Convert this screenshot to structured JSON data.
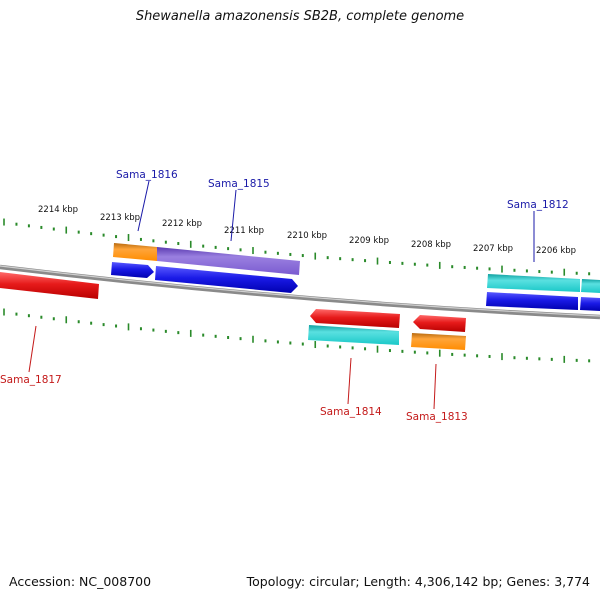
{
  "title": "Shewanella amazonensis SB2B, complete genome",
  "footer": {
    "accession": "Accession: NC_008700",
    "summary": "Topology: circular; Length: 4,306,142 bp; Genes: 3,774"
  },
  "colors": {
    "backbone": "#8a8a8a",
    "tick": "#2a8a2a",
    "forward_label": "#1a1aa8",
    "reverse_label": "#c41a1a",
    "blue": "#1a1ae6",
    "red": "#e61a1a",
    "orange": "#ff9a1a",
    "purple": "#8a6ad6",
    "cyan": "#1ac8c8"
  },
  "scale_labels": [
    "2214 kbp",
    "2213 kbp",
    "2212 kbp",
    "2211 kbp",
    "2210 kbp",
    "2209 kbp",
    "2208 kbp",
    "2207 kbp",
    "2206 kbp"
  ],
  "gene_labels": {
    "sama_1816": "Sama_1816",
    "sama_1815": "Sama_1815",
    "sama_1812": "Sama_1812",
    "sama_1817": "Sama_1817",
    "sama_1814": "Sama_1814",
    "sama_1813": "Sama_1813"
  }
}
